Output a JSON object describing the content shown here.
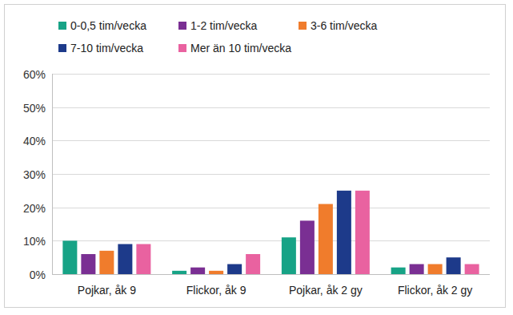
{
  "chart_data": {
    "type": "bar",
    "categories": [
      "Pojkar, åk 9",
      "Flickor, åk 9",
      "Pojkar, åk 2 gy",
      "Flickor, åk 2 gy"
    ],
    "series": [
      {
        "name": "0-0,5 tim/vecka",
        "color": "#17a386",
        "values": [
          10,
          1,
          11,
          2
        ]
      },
      {
        "name": "1-2 tim/vecka",
        "color": "#7a2f93",
        "values": [
          6,
          2,
          16,
          3
        ]
      },
      {
        "name": "3-6 tim/vecka",
        "color": "#f07c2c",
        "values": [
          7,
          1,
          21,
          3
        ]
      },
      {
        "name": "7-10 tim/vecka",
        "color": "#1d3a8a",
        "values": [
          9,
          3,
          25,
          5
        ]
      },
      {
        "name": "Mer än 10 tim/vecka",
        "color": "#e962a0",
        "values": [
          9,
          6,
          25,
          3
        ]
      }
    ],
    "ylim": [
      0,
      60
    ],
    "yticks": [
      {
        "value": 0,
        "label": "0%"
      },
      {
        "value": 10,
        "label": "10%"
      },
      {
        "value": 20,
        "label": "20%"
      },
      {
        "value": 30,
        "label": "30%"
      },
      {
        "value": 40,
        "label": "40%"
      },
      {
        "value": 50,
        "label": "50%"
      },
      {
        "value": 60,
        "label": "60%"
      }
    ],
    "grid": true,
    "legend": "top"
  }
}
